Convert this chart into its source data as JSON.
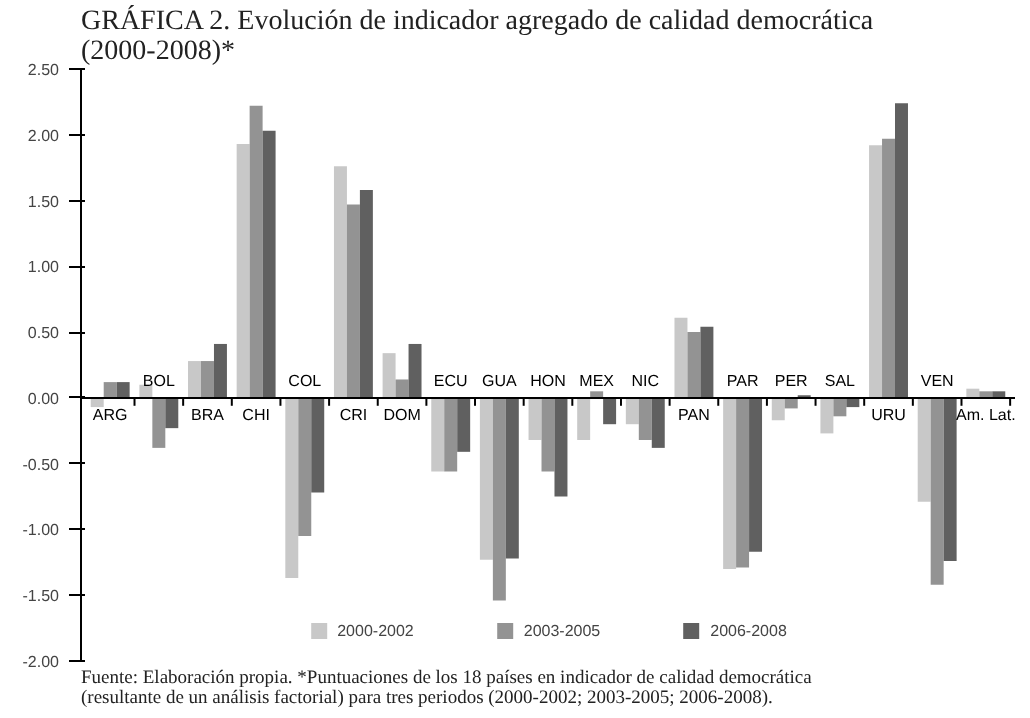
{
  "chart_data": {
    "type": "bar",
    "title": "GRÁFICA 2. Evolución de indicador agregado de calidad democrática (2000-2008)*",
    "categories": [
      "ARG",
      "BOL",
      "BRA",
      "CHI",
      "COL",
      "CRI",
      "DOM",
      "ECU",
      "GUA",
      "HON",
      "MEX",
      "NIC",
      "PAN",
      "PAR",
      "PER",
      "SAL",
      "URU",
      "VEN",
      "Am. Lat."
    ],
    "series": [
      {
        "name": "2000-2002",
        "color": "#c8c8c8",
        "values": [
          -0.07,
          0.1,
          0.28,
          1.93,
          -1.37,
          1.76,
          0.34,
          -0.56,
          -1.23,
          -0.32,
          -0.32,
          -0.2,
          0.61,
          -1.3,
          -0.17,
          -0.27,
          1.92,
          -0.79,
          0.07
        ]
      },
      {
        "name": "2003-2005",
        "color": "#939393",
        "values": [
          0.12,
          -0.38,
          0.28,
          2.22,
          -1.05,
          1.47,
          0.14,
          -0.56,
          -1.54,
          -0.56,
          0.05,
          -0.32,
          0.5,
          -1.29,
          -0.08,
          -0.14,
          1.97,
          -1.42,
          0.05
        ]
      },
      {
        "name": "2006-2008",
        "color": "#606060",
        "values": [
          0.12,
          -0.23,
          0.41,
          2.03,
          -0.72,
          1.58,
          0.41,
          -0.41,
          -1.22,
          -0.75,
          -0.2,
          -0.38,
          0.54,
          -1.17,
          0.02,
          -0.07,
          2.24,
          -1.24,
          0.05
        ]
      }
    ],
    "ylim": [
      -2.0,
      2.5
    ],
    "yticks": [
      {
        "value": -2.0,
        "label": "-2.00"
      },
      {
        "value": -1.5,
        "label": "-1.50"
      },
      {
        "value": -1.0,
        "label": "-1.00"
      },
      {
        "value": -0.5,
        "label": "-0.50"
      },
      {
        "value": 0,
        "label": "0.00"
      },
      {
        "value": 0.5,
        "label": "0.50"
      },
      {
        "value": 1.0,
        "label": "1.00"
      },
      {
        "value": 1.5,
        "label": "1.50"
      },
      {
        "value": 2.0,
        "label": "2.00"
      },
      {
        "value": 2.5,
        "label": "2.50"
      }
    ],
    "grid": false,
    "legend": "bottom",
    "annotations": [
      "Fuente: Elaboración propia. *Puntuaciones de los 18 países en indicador de calidad democrática (resultante de un análisis factorial) para tres periodos (2000-2002; 2003-2005; 2006-2008)."
    ]
  }
}
